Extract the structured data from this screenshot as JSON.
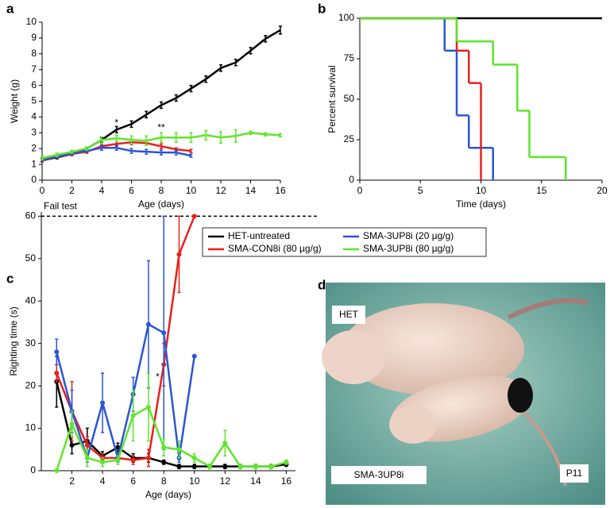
{
  "chart_data": [
    {
      "type": "line",
      "panel_label": "a",
      "xlabel": "Age (days)",
      "ylabel": "Weight (g)",
      "xlim": [
        0,
        16
      ],
      "ylim": [
        0,
        10
      ],
      "xticks": [
        0,
        2,
        4,
        6,
        8,
        10,
        12,
        14,
        16
      ],
      "yticks": [
        0,
        1,
        2,
        3,
        4,
        5,
        6,
        7,
        8,
        9,
        10
      ],
      "legend": true,
      "annotations": [
        {
          "text": "*",
          "x": 5,
          "y": 3.6
        },
        {
          "text": "**",
          "x": 8,
          "y": 3.3
        }
      ],
      "series": [
        {
          "name": "HET-untreated",
          "color": "#000000",
          "x": [
            0,
            1,
            2,
            3,
            4,
            5,
            6,
            7,
            8,
            9,
            10,
            11,
            12,
            13,
            14,
            15,
            16
          ],
          "values": [
            1.25,
            1.45,
            1.65,
            2.0,
            2.55,
            3.2,
            3.55,
            4.15,
            4.75,
            5.2,
            5.8,
            6.4,
            7.1,
            7.45,
            8.2,
            8.95,
            9.5
          ],
          "errors": [
            0.1,
            0.1,
            0.1,
            0.1,
            0.15,
            0.2,
            0.2,
            0.2,
            0.2,
            0.2,
            0.2,
            0.2,
            0.2,
            0.2,
            0.2,
            0.2,
            0.25
          ]
        },
        {
          "name": "SMA-CON8i (80 µg/g)",
          "color": "#e8201c",
          "x": [
            0,
            1,
            2,
            3,
            4,
            5,
            6,
            7,
            8,
            9,
            10
          ],
          "values": [
            1.25,
            1.5,
            1.65,
            1.8,
            2.15,
            2.3,
            2.4,
            2.35,
            2.15,
            1.95,
            1.85
          ],
          "errors": [
            0.1,
            0.1,
            0.1,
            0.1,
            0.1,
            0.15,
            0.15,
            0.15,
            0.15,
            0.1,
            0.1
          ]
        },
        {
          "name": "SMA-3UP8i (20 µg/g)",
          "color": "#2b55d6",
          "x": [
            0,
            1,
            2,
            3,
            4,
            5,
            6,
            7,
            8,
            9,
            10
          ],
          "values": [
            1.3,
            1.5,
            1.7,
            1.85,
            2.05,
            2.05,
            1.85,
            1.8,
            1.75,
            1.75,
            1.55
          ],
          "errors": [
            0.1,
            0.1,
            0.1,
            0.1,
            0.15,
            0.15,
            0.15,
            0.15,
            0.15,
            0.15,
            0.1
          ]
        },
        {
          "name": "SMA-3UP8i (80 µg/g)",
          "color": "#5de62b",
          "x": [
            0,
            1,
            2,
            3,
            4,
            5,
            6,
            7,
            8,
            9,
            10,
            11,
            12,
            13,
            14,
            15,
            16
          ],
          "values": [
            1.4,
            1.6,
            1.8,
            2.0,
            2.55,
            2.65,
            2.55,
            2.5,
            2.7,
            2.7,
            2.7,
            2.85,
            2.7,
            2.8,
            3.0,
            2.9,
            2.85
          ],
          "errors": [
            0.1,
            0.1,
            0.1,
            0.1,
            0.2,
            0.2,
            0.25,
            0.3,
            0.3,
            0.3,
            0.3,
            0.3,
            0.35,
            0.4,
            0.1,
            0.1,
            0.1
          ]
        }
      ]
    },
    {
      "type": "step",
      "panel_label": "b",
      "xlabel": "Time (days)",
      "ylabel": "Percent survival",
      "xlim": [
        0,
        20
      ],
      "ylim": [
        0,
        100
      ],
      "xticks": [
        0,
        5,
        10,
        15,
        20
      ],
      "yticks": [
        0,
        25,
        50,
        75,
        100
      ],
      "series": [
        {
          "name": "HET-untreated",
          "color": "#000000",
          "x": [
            0,
            20
          ],
          "values": [
            100,
            100
          ]
        },
        {
          "name": "SMA-3UP8i (20 µg/g)",
          "color": "#2b55d6",
          "x": [
            0,
            7,
            8,
            9,
            11
          ],
          "values": [
            100,
            80,
            40,
            20,
            0
          ]
        },
        {
          "name": "SMA-CON8i (80 µg/g)",
          "color": "#e8201c",
          "x": [
            0,
            8,
            9,
            10
          ],
          "values": [
            100,
            80,
            60,
            0
          ]
        },
        {
          "name": "SMA-3UP8i (80 µg/g)",
          "color": "#5de62b",
          "x": [
            0,
            8,
            11,
            13,
            14,
            17
          ],
          "values": [
            100,
            85.7,
            71.4,
            42.9,
            14.3,
            0
          ]
        }
      ]
    },
    {
      "type": "line",
      "panel_label": "c",
      "xlabel": "Age (days)",
      "ylabel": "Righting time (s)",
      "xlim": [
        0,
        16.6
      ],
      "ylim": [
        0,
        61
      ],
      "xticks": [
        2,
        4,
        6,
        8,
        10,
        12,
        14,
        16
      ],
      "yticks": [
        0,
        10,
        20,
        30,
        40,
        50,
        60
      ],
      "markers": true,
      "reference_line": {
        "value": 60,
        "label": "Fail test"
      },
      "annotations": [
        {
          "text": "*",
          "x": 7.6,
          "y": 22
        }
      ],
      "series": [
        {
          "name": "HET-untreated",
          "color": "#000000",
          "x": [
            1,
            2,
            3,
            4,
            5,
            6,
            7,
            8,
            9,
            10,
            11,
            12,
            13,
            14,
            15,
            16
          ],
          "values": [
            21,
            6,
            7,
            3.5,
            5.5,
            3,
            3,
            2,
            1,
            1,
            1,
            1,
            1,
            1,
            1,
            1.5
          ],
          "errors": [
            6,
            2,
            3,
            1,
            1,
            1,
            1,
            0.5,
            0.5,
            0.5,
            0.5,
            0.5,
            0.5,
            0.5,
            0.5,
            0.5
          ]
        },
        {
          "name": "SMA-CON8i (80 µg/g)",
          "color": "#e8201c",
          "x": [
            1,
            2,
            3,
            4,
            5,
            6,
            7,
            8,
            9,
            10
          ],
          "values": [
            23,
            14,
            6,
            3,
            3,
            2.5,
            3,
            25,
            51,
            60
          ],
          "errors": [
            2,
            7,
            2,
            1,
            1,
            1,
            2,
            5,
            9,
            0
          ]
        },
        {
          "name": "SMA-3UP8i (20 µg/g)",
          "color": "#2b55d6",
          "x": [
            1,
            2,
            3,
            4,
            5,
            6,
            7,
            8,
            9,
            10
          ],
          "values": [
            28,
            14,
            3,
            16,
            3,
            18,
            34.5,
            32.5,
            3,
            27
          ],
          "errors": [
            3,
            5,
            1,
            7,
            1,
            4,
            15,
            27.5,
            1,
            0
          ]
        },
        {
          "name": "SMA-3UP8i (80 µg/g)",
          "color": "#5de62b",
          "x": [
            1,
            2,
            3,
            4,
            5,
            6,
            7,
            8,
            9,
            10,
            11,
            12,
            13,
            14,
            15,
            16
          ],
          "values": [
            0,
            11,
            3,
            2,
            2.5,
            13,
            15,
            5.5,
            5,
            3,
            1,
            6.5,
            1,
            1,
            1,
            2
          ],
          "errors": [
            0,
            3,
            2,
            1,
            1,
            6,
            8,
            2,
            2,
            1,
            0.5,
            3,
            0.5,
            0.5,
            0.5,
            0.5
          ]
        }
      ]
    }
  ],
  "photo": {
    "panel_label": "d",
    "labels": [
      "HET",
      "SMA-3UP8i",
      "P11"
    ]
  }
}
